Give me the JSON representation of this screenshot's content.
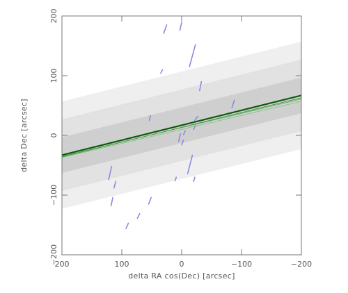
{
  "chart_data": {
    "type": "line",
    "title": "",
    "xlabel": "delta RA cos(Dec) [arcsec]",
    "ylabel": "delta Dec [arcsec]",
    "xlim": [
      200,
      -200
    ],
    "ylim": [
      -200,
      200
    ],
    "x_ticks": [
      200,
      100,
      0,
      -100,
      -200
    ],
    "x_tick_labels": [
      "200",
      "100",
      "0",
      "−100",
      "−200"
    ],
    "y_ticks": [
      -200,
      -100,
      0,
      100,
      200
    ],
    "y_tick_labels": [
      "−200",
      "−100",
      "0",
      "100",
      "200"
    ],
    "grid": false,
    "bands": [
      {
        "name": "outer",
        "offset": 90,
        "color": "#efefef"
      },
      {
        "name": "middle",
        "offset": 60,
        "color": "#e2e2e2"
      },
      {
        "name": "inner",
        "offset": 30,
        "color": "#cfcfcf"
      }
    ],
    "fit_line": {
      "x": [
        200,
        -200
      ],
      "y": [
        -33,
        67
      ],
      "color": "#0b5a0b"
    },
    "fit_spread": [
      {
        "x": [
          200,
          -200
        ],
        "y": [
          -35,
          61
        ],
        "color": "#4fae4f"
      },
      {
        "x": [
          200,
          -200
        ],
        "y": [
          -37,
          57
        ],
        "color": "#7fc47f"
      },
      {
        "x": [
          200,
          -200
        ],
        "y": [
          -36,
          63
        ],
        "color": "#3a8d3a"
      }
    ],
    "segments_color": "#8a8ae0",
    "segments": [
      {
        "x": [
          30,
          25
        ],
        "y": [
          171,
          185
        ]
      },
      {
        "x": [
          3,
          0
        ],
        "y": [
          176,
          189
        ]
      },
      {
        "x": [
          -13,
          -23
        ],
        "y": [
          115,
          152
        ]
      },
      {
        "x": [
          35,
          32
        ],
        "y": [
          104,
          110
        ]
      },
      {
        "x": [
          -30,
          -33
        ],
        "y": [
          75,
          90
        ]
      },
      {
        "x": [
          54,
          52
        ],
        "y": [
          25,
          33
        ]
      },
      {
        "x": [
          -22,
          -27
        ],
        "y": [
          25,
          32
        ]
      },
      {
        "x": [
          -84,
          -88
        ],
        "y": [
          46,
          59
        ]
      },
      {
        "x": [
          -20,
          -23
        ],
        "y": [
          10,
          17
        ]
      },
      {
        "x": [
          5,
          2
        ],
        "y": [
          -10,
          3
        ]
      },
      {
        "x": [
          -3,
          -6
        ],
        "y": [
          1,
          8
        ]
      },
      {
        "x": [
          0,
          -3
        ],
        "y": [
          -16,
          -8
        ]
      },
      {
        "x": [
          -10,
          -18
        ],
        "y": [
          -64,
          -33
        ]
      },
      {
        "x": [
          122,
          117
        ],
        "y": [
          -74,
          -52
        ]
      },
      {
        "x": [
          113,
          110
        ],
        "y": [
          -88,
          -77
        ]
      },
      {
        "x": [
          118,
          115
        ],
        "y": [
          -118,
          -104
        ]
      },
      {
        "x": [
          55,
          51
        ],
        "y": [
          -115,
          -104
        ]
      },
      {
        "x": [
          93,
          89
        ],
        "y": [
          -156,
          -147
        ]
      },
      {
        "x": [
          74,
          70
        ],
        "y": [
          -139,
          -131
        ]
      },
      {
        "x": [
          11,
          9
        ],
        "y": [
          -76,
          -70
        ]
      },
      {
        "x": [
          -20,
          -22
        ],
        "y": [
          -77,
          -70
        ]
      }
    ]
  }
}
